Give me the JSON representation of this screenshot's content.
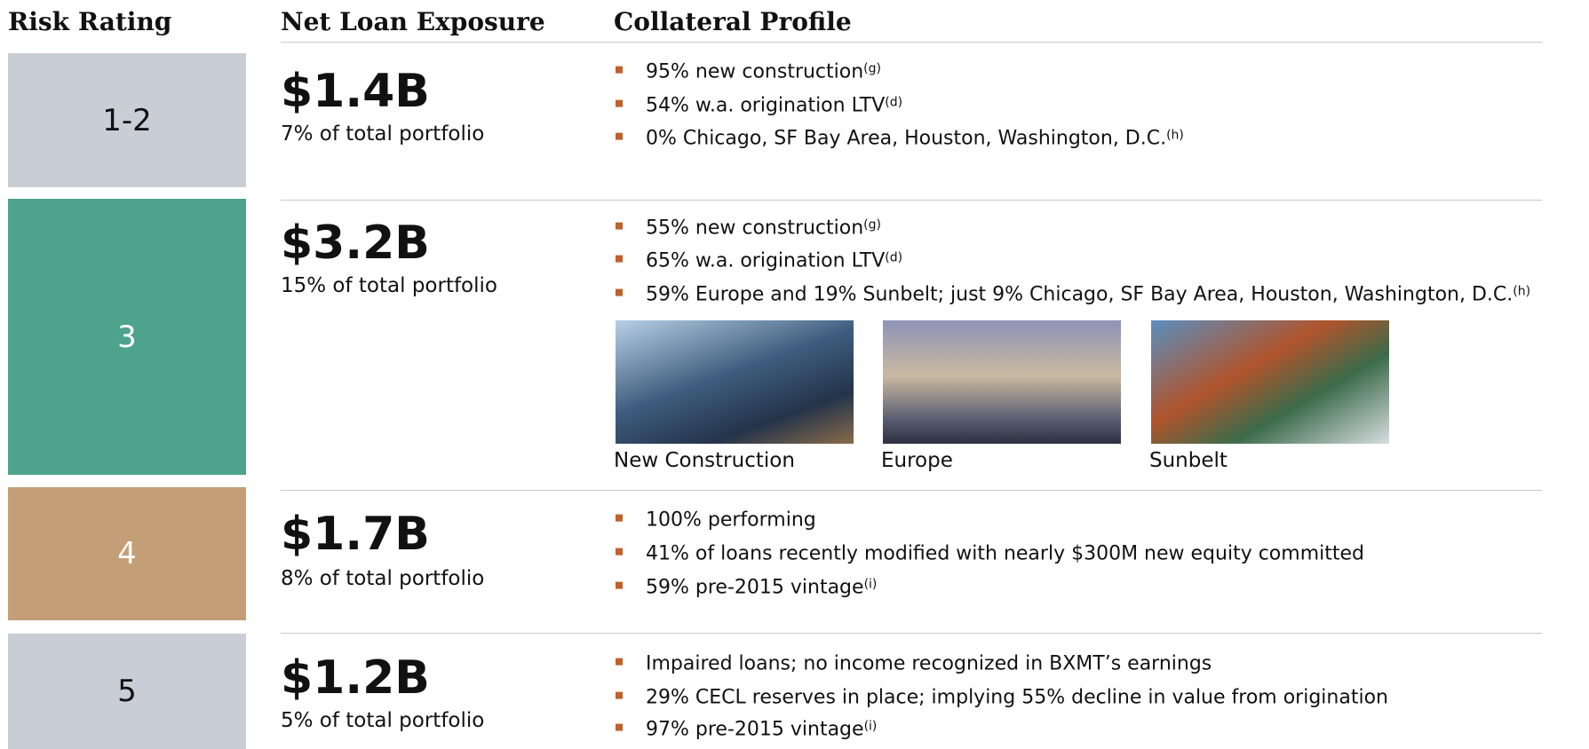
{
  "header": {
    "rating": "Risk Rating",
    "exposure": "Net Loan Exposure",
    "collateral": "Collateral Profile"
  },
  "rows": [
    {
      "rating": "1-2",
      "exposure": "$1.4B",
      "share": "7% of total portfolio",
      "bullets": [
        {
          "text": "95% new construction",
          "note": "(g)"
        },
        {
          "text": "54% w.a. origination LTV",
          "note": "(d)"
        },
        {
          "text": "0% Chicago, SF Bay Area, Houston, Washington, D.C.",
          "note": "(h)"
        }
      ]
    },
    {
      "rating": "3",
      "exposure": "$3.2B",
      "share": "15% of total portfolio",
      "bullets": [
        {
          "text": "55% new construction",
          "note": "(g)"
        },
        {
          "text": "65% w.a. origination LTV",
          "note": "(d)"
        },
        {
          "text": "59% Europe and 19% Sunbelt; just 9% Chicago, SF Bay Area, Houston, Washington, D.C.",
          "note": "(h)"
        }
      ],
      "images": [
        "New Construction",
        "Europe",
        "Sunbelt"
      ]
    },
    {
      "rating": "4",
      "exposure": "$1.7B",
      "share": "8% of total portfolio",
      "bullets": [
        {
          "text": "100% performing"
        },
        {
          "text": "41% of loans recently modified with nearly $300M new equity committed"
        },
        {
          "text": "59% pre-2015 vintage",
          "note": "(i)"
        }
      ]
    },
    {
      "rating": "5",
      "exposure": "$1.2B",
      "share": "5% of total portfolio",
      "bullets": [
        {
          "text": "Impaired loans; no income recognized in BXMT’s earnings"
        },
        {
          "text": "29% CECL reserves in place; implying 55% decline in value from origination"
        },
        {
          "text": "97% pre-2015 vintage",
          "note": "(i)"
        }
      ]
    }
  ]
}
